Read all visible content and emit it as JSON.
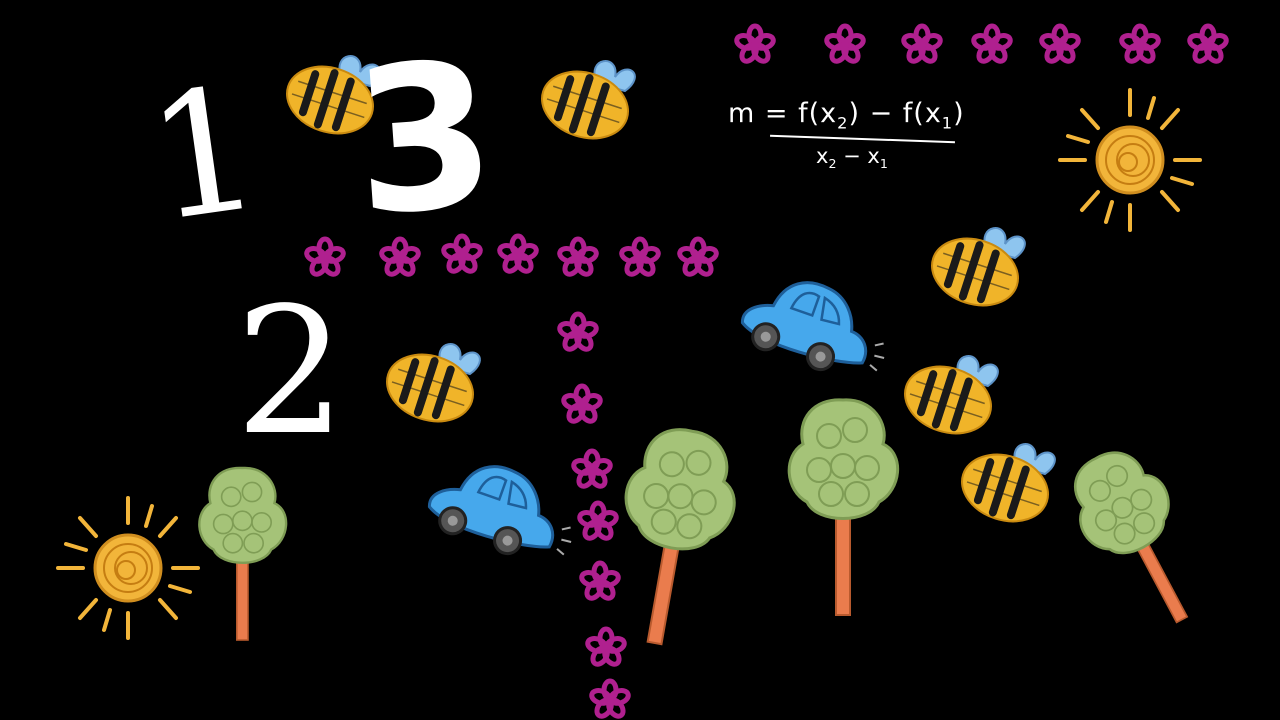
{
  "numerals": {
    "one": "1",
    "two": "2",
    "three": "3"
  },
  "formula": {
    "lhs": "m",
    "numerator_a": "f(x",
    "numerator_b": ") − f(x",
    "sub_2": "2",
    "sub_1": "1",
    "denominator_a": "x",
    "denominator_b": " − x"
  },
  "colors": {
    "background": "#000000",
    "flower": "#b0208f",
    "bee_body": "#f0b429",
    "bee_stripe": "#1a1a1a",
    "bee_wing": "#8ec5ef",
    "car": "#46a8ec",
    "tree_crown": "#a5c378",
    "tree_trunk": "#ea7c4d",
    "sun": "#f2b53a"
  },
  "icons": [
    "flower-icon",
    "bee-icon",
    "car-icon",
    "tree-icon",
    "sun-icon"
  ]
}
